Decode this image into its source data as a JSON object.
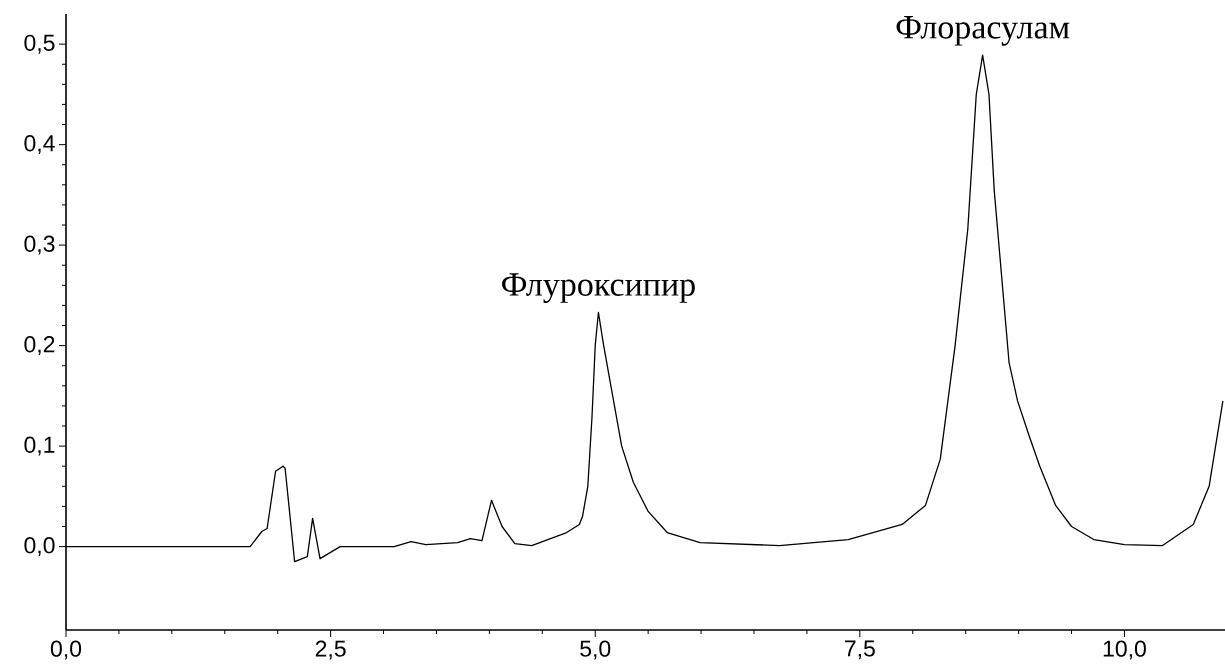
{
  "chart_data": {
    "type": "line",
    "x": [
      0,
      1.0,
      1.74,
      1.85,
      1.9,
      1.98,
      2.05,
      2.07,
      2.16,
      2.28,
      2.33,
      2.4,
      2.59,
      3.1,
      3.26,
      3.4,
      3.7,
      3.82,
      3.93,
      4.02,
      4.12,
      4.24,
      4.4,
      4.73,
      4.85,
      4.88,
      4.93,
      4.97,
      5.0,
      5.03,
      5.08,
      5.17,
      5.25,
      5.36,
      5.5,
      5.68,
      5.99,
      6.74,
      7.39,
      7.9,
      8.12,
      8.26,
      8.4,
      8.52,
      8.6,
      8.66,
      8.72,
      8.77,
      8.91,
      8.99,
      9.1,
      9.2,
      9.35,
      9.5,
      9.71,
      10.0,
      10.36,
      10.65,
      10.8,
      10.93
    ],
    "values": [
      0,
      0,
      0,
      0.015,
      0.018,
      0.075,
      0.08,
      0.078,
      -0.015,
      -0.01,
      0.028,
      -0.012,
      0,
      0,
      0.005,
      0.002,
      0.004,
      0.008,
      0.006,
      0.046,
      0.02,
      0.003,
      0.001,
      0.014,
      0.022,
      0.03,
      0.06,
      0.13,
      0.2,
      0.233,
      0.2,
      0.147,
      0.1,
      0.064,
      0.035,
      0.014,
      0.004,
      0.001,
      0.007,
      0.022,
      0.041,
      0.087,
      0.2,
      0.316,
      0.45,
      0.489,
      0.45,
      0.354,
      0.183,
      0.145,
      0.11,
      0.08,
      0.041,
      0.02,
      0.007,
      0.002,
      0.001,
      0.022,
      0.06,
      0.145
    ],
    "color": "#000000",
    "xlim": [
      0,
      10.95
    ],
    "ylim": [
      -0.083,
      0.53
    ],
    "xticks": [
      {
        "value": 0,
        "label": "0,0"
      },
      {
        "value": 2.5,
        "label": "2,5"
      },
      {
        "value": 5,
        "label": "5,0"
      },
      {
        "value": 7.5,
        "label": "7,5"
      },
      {
        "value": 10,
        "label": "10,0"
      }
    ],
    "yticks": [
      {
        "value": 0,
        "label": "0,0"
      },
      {
        "value": 0.1,
        "label": "0,1"
      },
      {
        "value": 0.2,
        "label": "0,2"
      },
      {
        "value": 0.3,
        "label": "0,3"
      },
      {
        "value": 0.4,
        "label": "0,4"
      },
      {
        "value": 0.5,
        "label": "0,5"
      }
    ],
    "annotations": [
      {
        "text": "Флуроксипир",
        "x": 5.03,
        "y": 0.233
      },
      {
        "text": "Флорасулам",
        "x": 8.66,
        "y": 0.489
      }
    ]
  }
}
